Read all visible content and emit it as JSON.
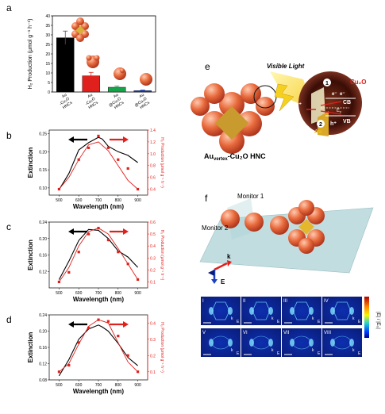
{
  "panel_labels": {
    "a": "a",
    "b": "b",
    "c": "c",
    "d": "d",
    "e": "e",
    "f": "f"
  },
  "colors": {
    "black": "#000000",
    "red": "#e0201c",
    "green": "#16a34a",
    "blue": "#1e3fbf",
    "gold": "#f0c020",
    "copper": "#e86a3c"
  },
  "chart_data": [
    {
      "id": "a",
      "type": "bar",
      "ylabel": "H₂ Production (μmol g⁻¹ h⁻¹)",
      "ylim": [
        0,
        40
      ],
      "yticks": [
        "0",
        "5",
        "10",
        "15",
        "20",
        "25",
        "30",
        "35",
        "40"
      ],
      "categories": [
        "Auₗ-Cu₂O HNCs",
        "Auᵥₑᵣₜₑₓ-Cu₂O HNCs",
        "Auₑₙₑₑₐₙ-Cu₂O HNCs",
        "Auₑₙₑₑₐₙ@Cu₂O HNCs"
      ],
      "category_lines": [
        [
          "Au",
          "-Cu₂O",
          "HNCs"
        ],
        [
          "Au",
          "-Cu₂O",
          "HNCs"
        ],
        [
          "Au",
          "@Cu₂O",
          "HNCs"
        ],
        [
          "Au",
          "@Cu₂O",
          "HNCs"
        ]
      ],
      "values": [
        28.5,
        8.5,
        2.5,
        0.7
      ],
      "errors": [
        3.5,
        1.8,
        0.6,
        0.3
      ],
      "bar_colors": [
        "#000000",
        "#e0201c",
        "#16a34a",
        "#1e3fbf"
      ]
    },
    {
      "id": "b",
      "type": "line",
      "xlabel": "Wavelength (nm)",
      "ylabel": "Extinction",
      "y2label": "H₂ Production (μmol g⁻¹ h⁻¹)",
      "xlim": [
        450,
        950
      ],
      "xticks": [
        "500",
        "600",
        "700",
        "800",
        "900"
      ],
      "ylim": [
        0.08,
        0.26
      ],
      "yticks": [
        "0.10",
        "0.15",
        "0.20",
        "0.25"
      ],
      "y2lim": [
        0.3,
        1.4
      ],
      "y2ticks": [
        "0.4",
        "0.6",
        "0.8",
        "1.0",
        "1.2",
        "1.4"
      ],
      "series": [
        {
          "axis": "left",
          "color": "#000000",
          "x": [
            500,
            550,
            600,
            650,
            700,
            720,
            750,
            800,
            850,
            900
          ],
          "y": [
            0.095,
            0.14,
            0.205,
            0.225,
            0.24,
            0.235,
            0.215,
            0.2,
            0.19,
            0.17
          ]
        },
        {
          "axis": "right",
          "color": "#e0201c",
          "x": [
            500,
            550,
            600,
            650,
            700,
            750,
            800,
            850,
            900
          ],
          "y": [
            0.4,
            0.6,
            0.9,
            1.15,
            1.2,
            1.05,
            0.8,
            0.55,
            0.4
          ]
        },
        {
          "axis": "right",
          "color": "#e0201c",
          "markers": true,
          "x": [
            500,
            600,
            650,
            700,
            750,
            800,
            850,
            900
          ],
          "y": [
            0.4,
            0.9,
            1.1,
            1.3,
            1.1,
            0.9,
            0.75,
            0.4
          ]
        }
      ]
    },
    {
      "id": "c",
      "type": "line",
      "xlabel": "Wavelength (nm)",
      "ylabel": "Extinction",
      "y2label": "H₂ Production (μmol g⁻¹ h⁻¹)",
      "xlim": [
        450,
        950
      ],
      "xticks": [
        "500",
        "600",
        "700",
        "800",
        "900"
      ],
      "ylim": [
        0.08,
        0.24
      ],
      "yticks": [
        "0.12",
        "0.16",
        "0.20",
        "0.24"
      ],
      "y2lim": [
        0.05,
        0.6
      ],
      "y2ticks": [
        "0.1",
        "0.2",
        "0.3",
        "0.4",
        "0.5",
        "0.6"
      ],
      "series": [
        {
          "axis": "left",
          "color": "#000000",
          "x": [
            500,
            550,
            600,
            650,
            700,
            750,
            800,
            850,
            900
          ],
          "y": [
            0.1,
            0.145,
            0.195,
            0.222,
            0.22,
            0.2,
            0.17,
            0.155,
            0.13
          ]
        },
        {
          "axis": "right",
          "color": "#e0201c",
          "x": [
            500,
            550,
            600,
            650,
            700,
            750,
            800,
            850,
            900
          ],
          "y": [
            0.1,
            0.22,
            0.4,
            0.52,
            0.55,
            0.5,
            0.38,
            0.25,
            0.12
          ]
        },
        {
          "axis": "right",
          "color": "#e0201c",
          "markers": true,
          "x": [
            500,
            550,
            600,
            650,
            700,
            750,
            800,
            850,
            900
          ],
          "y": [
            0.1,
            0.18,
            0.35,
            0.5,
            0.55,
            0.45,
            0.35,
            0.25,
            0.12
          ]
        }
      ]
    },
    {
      "id": "d",
      "type": "line",
      "xlabel": "Wavelength (nm)",
      "ylabel": "Extinction",
      "y2label": "H₂ Production (μmol g⁻¹ h⁻¹)",
      "xlim": [
        450,
        950
      ],
      "xticks": [
        "500",
        "600",
        "700",
        "800",
        "900"
      ],
      "ylim": [
        0.08,
        0.24
      ],
      "yticks": [
        "0.08",
        "0.12",
        "0.16",
        "0.20",
        "0.24"
      ],
      "y2lim": [
        0.05,
        0.45
      ],
      "y2ticks": [
        "0.1",
        "0.2",
        "0.3",
        "0.4"
      ],
      "series": [
        {
          "axis": "left",
          "color": "#000000",
          "x": [
            500,
            550,
            600,
            650,
            700,
            720,
            750,
            800,
            850,
            900
          ],
          "y": [
            0.09,
            0.13,
            0.18,
            0.205,
            0.215,
            0.21,
            0.2,
            0.17,
            0.135,
            0.115
          ]
        },
        {
          "axis": "right",
          "color": "#e0201c",
          "x": [
            500,
            550,
            600,
            650,
            700,
            750,
            800,
            850,
            900
          ],
          "y": [
            0.1,
            0.15,
            0.27,
            0.38,
            0.42,
            0.4,
            0.28,
            0.16,
            0.1
          ]
        },
        {
          "axis": "right",
          "color": "#e0201c",
          "markers": true,
          "x": [
            500,
            550,
            600,
            650,
            700,
            750,
            800,
            850,
            900
          ],
          "y": [
            0.1,
            0.14,
            0.28,
            0.37,
            0.42,
            0.41,
            0.32,
            0.2,
            0.1
          ]
        }
      ]
    }
  ],
  "panel_e": {
    "title_prefix": "Au",
    "title_sub": "vertex",
    "title_suffix": "-Cu₂O HNC",
    "light": "Visible Light",
    "cu2o": "Cu₂O",
    "cb": "CB",
    "vb": "VB",
    "ef": "E",
    "ef_sub": "F",
    "au": "Au",
    "h_plus": "h⁺",
    "e_minus": "e⁻",
    "step1": "1",
    "step2": "2"
  },
  "panel_f": {
    "monitor1": "Monitor 1",
    "monitor2": "Monitor 2",
    "k": "k",
    "e": "E",
    "tiles": [
      "I",
      "II",
      "III",
      "IV",
      "V",
      "VI",
      "VII",
      "VIII"
    ],
    "colorbar_label": "|E| / |E₀|"
  }
}
